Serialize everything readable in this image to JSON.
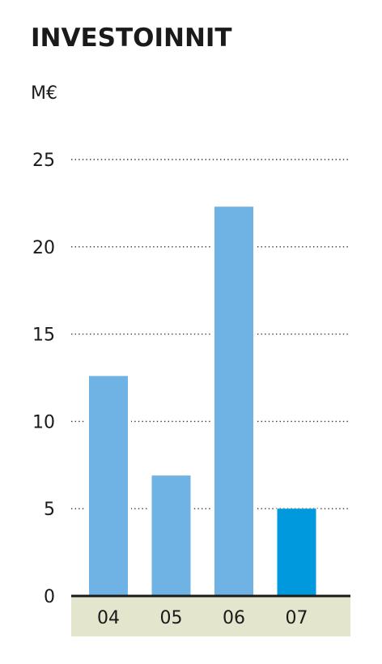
{
  "chart_data": {
    "type": "bar",
    "title": "INVESTOINNIT",
    "ylabel": "M€",
    "xlabel": "",
    "categories": [
      "04",
      "05",
      "06",
      "07"
    ],
    "values": [
      12.6,
      6.9,
      22.3,
      5.0
    ],
    "yticks": [
      "0",
      "5",
      "10",
      "15",
      "20",
      "25"
    ],
    "ylim": [
      0,
      25
    ],
    "grid": true,
    "legend": "none",
    "colors": {
      "bar": "#6fb3e4",
      "highlight_bar": "#0099dd",
      "axis": "#1a1a1a",
      "xaxis_band": "#e3e5cc"
    },
    "highlight_index": 3
  }
}
